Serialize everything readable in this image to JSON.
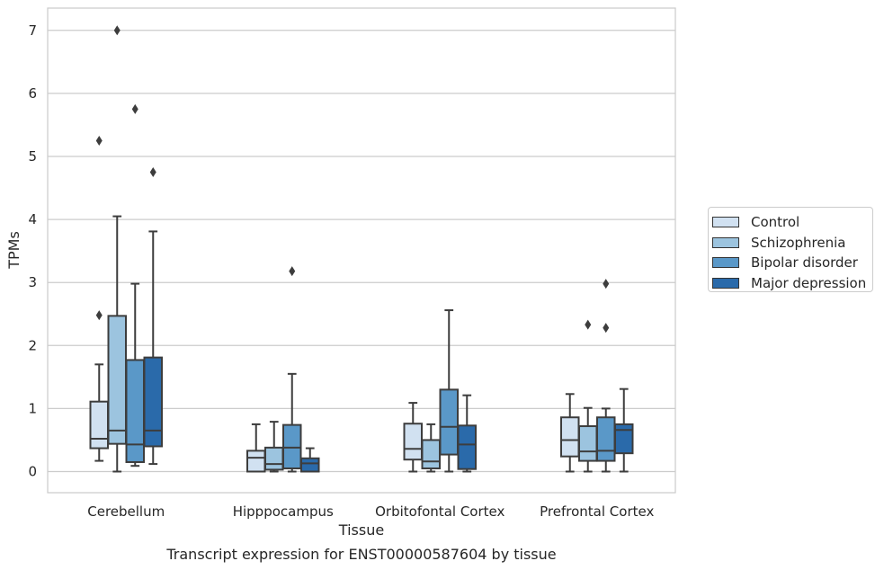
{
  "chart_data": {
    "type": "box",
    "caption": "Transcript expression for ENST00000587604 by tissue",
    "xlabel": "Tissue",
    "ylabel": "TPMs",
    "ylim": [
      -0.33,
      7.35
    ],
    "yticks": [
      0,
      1,
      2,
      3,
      4,
      5,
      6,
      7
    ],
    "grid": true,
    "legend_position": "right",
    "categories": [
      "Cerebellum",
      "Hipppocampus",
      "Orbitofontal Cortex",
      "Prefrontal Cortex"
    ],
    "series": [
      {
        "name": "Control",
        "color": "#d1e1f1",
        "boxes": [
          {
            "whislo": 0.17,
            "q1": 0.37,
            "med": 0.52,
            "q3": 1.11,
            "whishi": 1.7,
            "fliers": [
              2.48,
              5.25
            ]
          },
          {
            "whislo": 0.0,
            "q1": 0.0,
            "med": 0.22,
            "q3": 0.33,
            "whishi": 0.75,
            "fliers": []
          },
          {
            "whislo": 0.0,
            "q1": 0.19,
            "med": 0.36,
            "q3": 0.76,
            "whishi": 1.09,
            "fliers": []
          },
          {
            "whislo": 0.0,
            "q1": 0.24,
            "med": 0.5,
            "q3": 0.86,
            "whishi": 1.23,
            "fliers": []
          }
        ]
      },
      {
        "name": "Schizophrenia",
        "color": "#9cc4df",
        "boxes": [
          {
            "whislo": 0.0,
            "q1": 0.44,
            "med": 0.65,
            "q3": 2.47,
            "whishi": 4.05,
            "fliers": [
              7.0
            ]
          },
          {
            "whislo": 0.0,
            "q1": 0.03,
            "med": 0.12,
            "q3": 0.38,
            "whishi": 0.79,
            "fliers": []
          },
          {
            "whislo": 0.0,
            "q1": 0.05,
            "med": 0.16,
            "q3": 0.5,
            "whishi": 0.75,
            "fliers": []
          },
          {
            "whislo": 0.0,
            "q1": 0.17,
            "med": 0.32,
            "q3": 0.72,
            "whishi": 1.01,
            "fliers": [
              2.33
            ]
          }
        ]
      },
      {
        "name": "Bipolar disorder",
        "color": "#5a98c8",
        "boxes": [
          {
            "whislo": 0.09,
            "q1": 0.15,
            "med": 0.43,
            "q3": 1.77,
            "whishi": 2.98,
            "fliers": [
              5.75
            ]
          },
          {
            "whislo": 0.0,
            "q1": 0.05,
            "med": 0.38,
            "q3": 0.74,
            "whishi": 1.55,
            "fliers": [
              3.18
            ]
          },
          {
            "whislo": 0.0,
            "q1": 0.27,
            "med": 0.71,
            "q3": 1.3,
            "whishi": 2.56,
            "fliers": []
          },
          {
            "whislo": 0.0,
            "q1": 0.17,
            "med": 0.33,
            "q3": 0.86,
            "whishi": 1.0,
            "fliers": [
              2.98,
              2.28
            ]
          }
        ]
      },
      {
        "name": "Major depression",
        "color": "#2a6aaa",
        "boxes": [
          {
            "whislo": 0.12,
            "q1": 0.4,
            "med": 0.65,
            "q3": 1.81,
            "whishi": 3.81,
            "fliers": [
              4.75
            ]
          },
          {
            "whislo": 0.0,
            "q1": 0.0,
            "med": 0.13,
            "q3": 0.21,
            "whishi": 0.37,
            "fliers": []
          },
          {
            "whislo": 0.0,
            "q1": 0.04,
            "med": 0.43,
            "q3": 0.73,
            "whishi": 1.21,
            "fliers": []
          },
          {
            "whislo": 0.0,
            "q1": 0.29,
            "med": 0.66,
            "q3": 0.75,
            "whishi": 1.31,
            "fliers": []
          }
        ]
      }
    ]
  }
}
